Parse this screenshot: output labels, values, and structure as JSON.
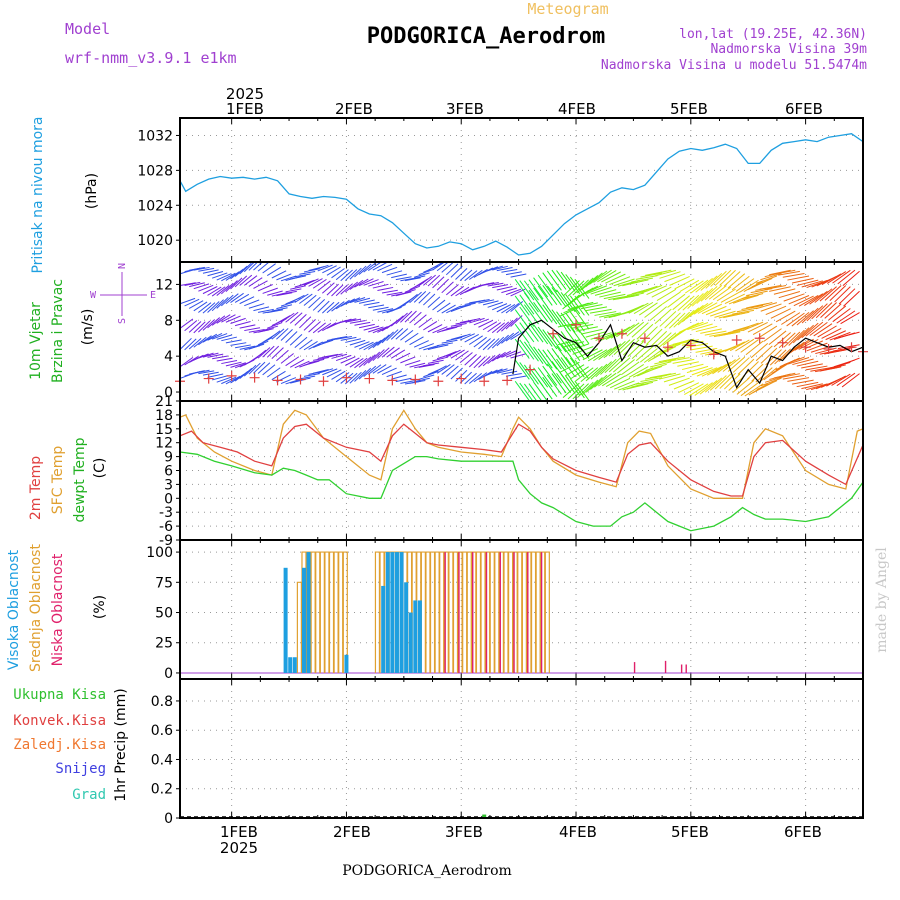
{
  "header": {
    "model_label": "Model",
    "model_name": "wrf-nmm_v3.9.1 e1km",
    "meteogram_label": "Meteogram",
    "station_title": "PODGORICA_Aerodrom",
    "lonlat": "lon,lat (19.25E, 42.36N)",
    "elevation": "Nadmorska Visina 39m",
    "model_elevation": "Nadmorska Visina u modelu 51.5474m"
  },
  "footer": {
    "station": "PODGORICA_Aerodrom",
    "watermark": "made by Angel"
  },
  "time_axis": {
    "year": "2025",
    "ticks": [
      "1FEB",
      "2FEB",
      "3FEB",
      "4FEB",
      "5FEB",
      "6FEB"
    ],
    "tick_days": [
      1,
      2,
      3,
      4,
      5,
      6
    ],
    "start_day": 0.55,
    "end_day": 6.5
  },
  "colors": {
    "pressure": "#1e9fe0",
    "temp2m": "#e04040",
    "sfc_temp": "#e0a030",
    "dewpt": "#30d030",
    "cloud_high": "#1e9fe0",
    "cloud_mid": "#e0a030",
    "cloud_low": "#e0206a",
    "label_purple": "#a040d0"
  },
  "chart_data": [
    {
      "type": "line",
      "panel": "pressure",
      "ylabel_title": "Pritisak na nivou mora",
      "ylabel_unit": "(hPa)",
      "yticks": [
        1020,
        1024,
        1028,
        1032
      ],
      "ylim": [
        1017.5,
        1034
      ],
      "grid": true,
      "series": [
        {
          "x": [
            0.55,
            0.6,
            0.7,
            0.8,
            0.9,
            1.0,
            1.1,
            1.2,
            1.3,
            1.4,
            1.5,
            1.6,
            1.7,
            1.8,
            1.9,
            2.0,
            2.1,
            2.2,
            2.3,
            2.4,
            2.5,
            2.6,
            2.7,
            2.8,
            2.9,
            3.0,
            3.1,
            3.2,
            3.3,
            3.4,
            3.5,
            3.6,
            3.7,
            3.8,
            3.9,
            4.0,
            4.1,
            4.2,
            4.3,
            4.4,
            4.5,
            4.6,
            4.7,
            4.8,
            4.9,
            5.0,
            5.1,
            5.2,
            5.3,
            5.4,
            5.5,
            5.6,
            5.7,
            5.8,
            5.9,
            6.0,
            6.1,
            6.2,
            6.3,
            6.4,
            6.5
          ],
          "y": [
            1026.8,
            1025.6,
            1026.4,
            1027.0,
            1027.3,
            1027.1,
            1027.2,
            1027.0,
            1027.2,
            1026.8,
            1025.3,
            1025.0,
            1024.8,
            1025.0,
            1024.9,
            1024.7,
            1023.6,
            1023.0,
            1022.8,
            1022.0,
            1020.8,
            1019.6,
            1019.1,
            1019.3,
            1019.8,
            1019.6,
            1018.9,
            1019.3,
            1019.9,
            1019.2,
            1018.3,
            1018.5,
            1019.3,
            1020.6,
            1021.9,
            1022.9,
            1023.6,
            1024.3,
            1025.5,
            1026.0,
            1025.8,
            1026.3,
            1027.8,
            1029.3,
            1030.2,
            1030.5,
            1030.3,
            1030.6,
            1031.0,
            1030.5,
            1028.8,
            1028.8,
            1030.3,
            1031.1,
            1031.3,
            1031.5,
            1031.3,
            1031.8,
            1032.0,
            1032.2,
            1031.3
          ]
        }
      ]
    },
    {
      "type": "line",
      "panel": "wind",
      "ylabel_title1": "10m Vjetar",
      "ylabel_title2": "Brzina i Pravac",
      "ylabel_unit": "(m/s)",
      "compass": {
        "n": "N",
        "s": "S",
        "e": "E",
        "w": "W"
      },
      "yticks": [
        0,
        4,
        8,
        12
      ],
      "ylim": [
        -1,
        14.5
      ],
      "grid": true,
      "series": [
        {
          "name": "",
          "x": [
            3.45,
            3.5,
            3.6,
            3.7,
            3.8,
            3.9,
            4.0,
            4.1,
            4.2,
            4.3,
            4.4,
            4.5,
            4.6,
            4.7,
            4.8,
            4.9,
            5.0,
            5.1,
            5.2,
            5.3,
            5.4,
            5.5,
            5.6,
            5.7,
            5.8,
            5.9,
            6.0,
            6.1,
            6.2,
            6.3,
            6.4,
            6.5
          ],
          "y": [
            2.0,
            6.0,
            7.5,
            8.0,
            7.0,
            6.0,
            5.5,
            4.0,
            5.5,
            7.5,
            3.5,
            5.5,
            5.0,
            5.2,
            4.0,
            4.5,
            5.8,
            5.5,
            4.5,
            4.0,
            0.5,
            2.5,
            1.0,
            4.0,
            3.5,
            5.0,
            6.0,
            5.5,
            5.0,
            5.2,
            4.5,
            5.0
          ]
        },
        {
          "name": "",
          "x": [
            0.55,
            0.8,
            1.0,
            1.2,
            1.4,
            1.6,
            1.8,
            2.0,
            2.2,
            2.4,
            2.6,
            2.8,
            3.0,
            3.2,
            3.4,
            3.6,
            3.8,
            4.0,
            4.2,
            4.4,
            4.6,
            4.8,
            5.0,
            5.2,
            5.4,
            5.6,
            5.8,
            6.0,
            6.2,
            6.4,
            6.5
          ],
          "y": [
            1.2,
            1.5,
            1.8,
            1.6,
            1.3,
            1.4,
            1.2,
            1.6,
            1.5,
            1.3,
            1.4,
            1.2,
            1.5,
            1.2,
            1.3,
            2.5,
            6.5,
            7.5,
            6.0,
            6.5,
            6.0,
            5.0,
            5.2,
            4.2,
            5.8,
            6.0,
            5.5,
            5.0,
            4.8,
            5.0,
            4.5
          ]
        }
      ]
    },
    {
      "type": "line",
      "panel": "temperature",
      "ylabel_t2m": "2m Temp",
      "ylabel_sfc": "SFC Temp",
      "ylabel_dew": "dewpt Temp",
      "ylabel_unit": "(C)",
      "yticks": [
        -9,
        -6,
        -3,
        0,
        3,
        6,
        9,
        12,
        15,
        18,
        21
      ],
      "ylim": [
        -9,
        21
      ],
      "grid": true,
      "series": [
        {
          "name": "2m Temp",
          "x": [
            0.55,
            0.65,
            0.75,
            0.9,
            1.05,
            1.2,
            1.35,
            1.45,
            1.55,
            1.65,
            1.8,
            2.0,
            2.2,
            2.3,
            2.4,
            2.5,
            2.6,
            2.7,
            2.8,
            3.0,
            3.2,
            3.35,
            3.45,
            3.5,
            3.6,
            3.7,
            3.8,
            4.0,
            4.2,
            4.35,
            4.45,
            4.55,
            4.65,
            4.8,
            5.0,
            5.2,
            5.35,
            5.45,
            5.55,
            5.65,
            5.8,
            6.0,
            6.2,
            6.35,
            6.5
          ],
          "y": [
            13.5,
            14.5,
            12,
            11,
            10,
            8,
            7,
            13,
            15.5,
            16,
            13,
            11,
            10,
            8,
            13.5,
            16,
            14,
            12,
            11.5,
            11,
            10.5,
            10,
            14,
            16,
            14.5,
            11,
            8.5,
            6,
            4.5,
            3.5,
            9.5,
            11.5,
            12,
            8,
            4,
            1.5,
            0.5,
            0.5,
            9,
            12,
            12.5,
            8,
            5,
            3,
            11.5
          ]
        },
        {
          "name": "SFC Temp",
          "x": [
            0.55,
            0.6,
            0.7,
            0.85,
            1.0,
            1.2,
            1.35,
            1.45,
            1.55,
            1.65,
            1.8,
            2.0,
            2.2,
            2.3,
            2.4,
            2.5,
            2.6,
            2.7,
            2.8,
            3.0,
            3.2,
            3.35,
            3.45,
            3.5,
            3.6,
            3.7,
            3.8,
            4.0,
            4.2,
            4.35,
            4.45,
            4.55,
            4.65,
            4.8,
            5.0,
            5.2,
            5.35,
            5.45,
            5.55,
            5.65,
            5.8,
            6.0,
            6.2,
            6.35,
            6.45,
            6.5
          ],
          "y": [
            17.5,
            18,
            13,
            10,
            8,
            6,
            5,
            16,
            19,
            18,
            13,
            9,
            5,
            4,
            15,
            19,
            15,
            12,
            11,
            10,
            9.5,
            9,
            15,
            17.5,
            15,
            11,
            8,
            5,
            3.5,
            2.5,
            12,
            14.5,
            14,
            7,
            2,
            0,
            0,
            0,
            12,
            15,
            13.5,
            6,
            3,
            2,
            14.5,
            15
          ]
        },
        {
          "name": "dewpt Temp",
          "x": [
            0.55,
            0.7,
            0.85,
            1.0,
            1.2,
            1.35,
            1.45,
            1.55,
            1.65,
            1.75,
            1.85,
            2.0,
            2.2,
            2.3,
            2.4,
            2.5,
            2.6,
            2.7,
            2.8,
            3.0,
            3.2,
            3.35,
            3.45,
            3.5,
            3.6,
            3.7,
            3.8,
            4.0,
            4.15,
            4.3,
            4.4,
            4.5,
            4.6,
            4.7,
            4.8,
            5.0,
            5.2,
            5.35,
            5.45,
            5.55,
            5.65,
            5.8,
            6.0,
            6.2,
            6.3,
            6.4,
            6.5
          ],
          "y": [
            10,
            9.5,
            8,
            7,
            5.5,
            5,
            6.5,
            6,
            5,
            4,
            4,
            1,
            0,
            0,
            6,
            7.5,
            9,
            9,
            8.5,
            8,
            8,
            8,
            8,
            4,
            1,
            -1,
            -2,
            -5,
            -6,
            -6,
            -4,
            -3,
            -1,
            -3,
            -5,
            -7,
            -6,
            -4,
            -2,
            -3.5,
            -4.5,
            -4.5,
            -5,
            -4,
            -2,
            0,
            3.5
          ]
        }
      ]
    },
    {
      "type": "bar",
      "panel": "clouds",
      "ylabel_high": "Visoka Oblacnost",
      "ylabel_mid": "Srednja Oblacnost",
      "ylabel_low": "Niska Oblacnost",
      "ylabel_unit": "(%)",
      "yticks": [
        0,
        25,
        50,
        75,
        100
      ],
      "ylim": [
        -5,
        110
      ],
      "grid": true,
      "series": [
        {
          "name": "Visoka Oblacnost",
          "x": [
            1.47,
            1.51,
            1.55,
            1.63,
            1.67,
            2.0,
            2.32,
            2.36,
            2.4,
            2.44,
            2.48,
            2.52,
            2.56,
            2.6,
            2.64
          ],
          "y": [
            87,
            13,
            13,
            87,
            100,
            15,
            72,
            100,
            100,
            100,
            100,
            75,
            50,
            60,
            60
          ]
        },
        {
          "name": "Srednja Oblacnost",
          "x": [
            1.59,
            1.63,
            1.67,
            1.71,
            1.75,
            1.79,
            1.83,
            1.87,
            1.91,
            1.95,
            1.99,
            2.27,
            2.31,
            2.35,
            2.39,
            2.43,
            2.47,
            2.51,
            2.55,
            2.59,
            2.63,
            2.67,
            2.71,
            2.75,
            2.79,
            2.83,
            2.87,
            2.91,
            2.95,
            2.99,
            3.03,
            3.07,
            3.11,
            3.15,
            3.19,
            3.23,
            3.27,
            3.31,
            3.35,
            3.39,
            3.43,
            3.47,
            3.51,
            3.55,
            3.59,
            3.63,
            3.67,
            3.71,
            3.75
          ],
          "y": [
            75,
            100,
            100,
            100,
            100,
            100,
            100,
            100,
            100,
            100,
            100,
            100,
            100,
            100,
            100,
            100,
            100,
            100,
            100,
            100,
            100,
            100,
            100,
            100,
            100,
            100,
            100,
            100,
            100,
            100,
            100,
            100,
            100,
            100,
            100,
            100,
            100,
            100,
            100,
            100,
            100,
            100,
            100,
            100,
            100,
            100,
            100,
            100,
            100
          ]
        },
        {
          "name": "Niska Oblacnost",
          "x": [
            2.86,
            2.98,
            3.1,
            3.22,
            3.34,
            3.46,
            3.58,
            3.7,
            4.51,
            4.78,
            4.92,
            4.96
          ],
          "y": [
            100,
            100,
            100,
            100,
            100,
            100,
            100,
            100,
            9,
            10,
            7,
            7
          ]
        }
      ]
    },
    {
      "type": "bar",
      "panel": "precip",
      "ylabel_unit": "1hr Precip (mm)",
      "legend": [
        "Ukupna Kisa",
        "Konvek.Kisa",
        "Zaledj.Kisa",
        "Snijeg",
        "Grad"
      ],
      "legend_colors": [
        "#30c030",
        "#e04040",
        "#f07830",
        "#4040e0",
        "#30c8b0"
      ],
      "yticks": [
        0,
        0.2,
        0.4,
        0.6,
        0.8
      ],
      "ylim": [
        0,
        0.95
      ],
      "grid": true,
      "series": [
        {
          "name": "Ukupna Kisa",
          "x": [
            3.2
          ],
          "y": [
            0.01
          ]
        }
      ]
    }
  ]
}
